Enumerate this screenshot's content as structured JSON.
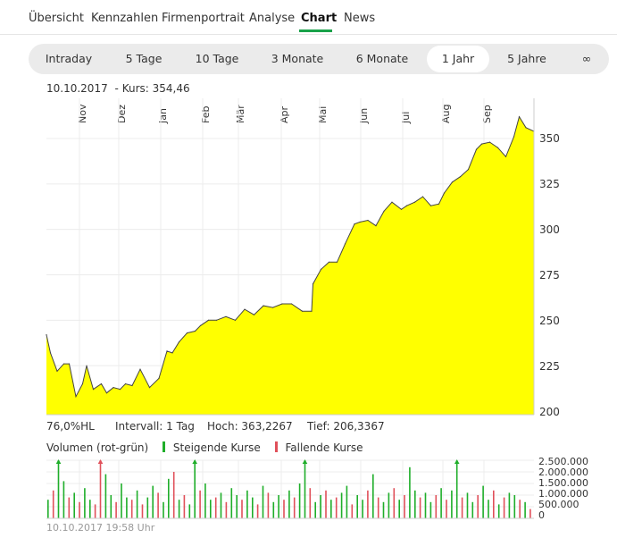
{
  "nav": {
    "tabs": [
      "Übersicht",
      "Kennzahlen",
      "Firmenportrait",
      "Analyse",
      "Chart",
      "News"
    ],
    "active": "Chart",
    "accent": "#19a24a"
  },
  "ranges": {
    "items": [
      "Intraday",
      "5 Tage",
      "10 Tage",
      "3 Monate",
      "6 Monate",
      "1 Jahr",
      "5 Jahre",
      "∞"
    ],
    "active": "1 Jahr"
  },
  "header": {
    "date": "10.10.2017",
    "kurs": "- Kurs: 354,46"
  },
  "footer_stats": {
    "hl": "76,0%HL",
    "interval": "Intervall: 1 Tag",
    "high": "Hoch: 363,2267",
    "low": "Tief: 206,3367"
  },
  "volume_legend": {
    "title": "Volumen (rot-grün)",
    "rising": "Steigende Kurse",
    "falling": "Fallende Kurse",
    "rising_color": "#1fae2a",
    "falling_color": "#e0505a"
  },
  "timestamp": "10.10.2017 19:58 Uhr",
  "chart_data": [
    {
      "type": "area",
      "fill_color": "#ffff00",
      "x_ticks": [
        "Nov",
        "Dez",
        "Jan",
        "Feb",
        "Mär",
        "Apr",
        "Mai",
        "Jun",
        "Jul",
        "Aug",
        "Sep"
      ],
      "y_ticks": [
        "350",
        "325",
        "300",
        "275",
        "250",
        "225",
        "200"
      ],
      "ylim": [
        200,
        363
      ],
      "grid": true,
      "x": [
        "2016-10-11",
        "2016-10-14",
        "2016-10-19",
        "2016-10-24",
        "2016-10-28",
        "2016-11-02",
        "2016-11-07",
        "2016-11-10",
        "2016-11-15",
        "2016-11-21",
        "2016-11-25",
        "2016-11-30",
        "2016-12-05",
        "2016-12-09",
        "2016-12-14",
        "2016-12-20",
        "2016-12-27",
        "2017-01-03",
        "2017-01-09",
        "2017-01-13",
        "2017-01-18",
        "2017-01-24",
        "2017-01-30",
        "2017-02-03",
        "2017-02-09",
        "2017-02-15",
        "2017-02-22",
        "2017-03-01",
        "2017-03-08",
        "2017-03-15",
        "2017-03-22",
        "2017-03-29",
        "2017-04-05",
        "2017-04-12",
        "2017-04-20",
        "2017-04-27",
        "2017-04-28",
        "2017-05-04",
        "2017-05-10",
        "2017-05-16",
        "2017-05-22",
        "2017-05-29",
        "2017-06-02",
        "2017-06-08",
        "2017-06-14",
        "2017-06-20",
        "2017-06-26",
        "2017-07-03",
        "2017-07-07",
        "2017-07-13",
        "2017-07-19",
        "2017-07-25",
        "2017-07-31",
        "2017-08-04",
        "2017-08-10",
        "2017-08-16",
        "2017-08-22",
        "2017-08-28",
        "2017-09-01",
        "2017-09-07",
        "2017-09-13",
        "2017-09-19",
        "2017-09-25",
        "2017-09-29",
        "2017-10-04",
        "2017-10-10"
      ],
      "values": [
        242,
        232,
        222,
        226,
        226,
        208,
        215,
        225,
        212,
        215,
        210,
        213,
        212,
        215,
        214,
        223,
        213,
        218,
        233,
        232,
        238,
        243,
        244,
        247,
        250,
        250,
        252,
        250,
        256,
        253,
        258,
        257,
        259,
        259,
        255,
        255,
        270,
        278,
        282,
        282,
        292,
        303,
        304,
        305,
        302,
        310,
        315,
        311,
        313,
        315,
        318,
        313,
        314,
        320,
        326,
        329,
        333,
        344,
        347,
        348,
        345,
        340,
        351,
        362,
        356,
        354
      ]
    },
    {
      "type": "bar",
      "title": "Volumen (rot-grün)",
      "y_ticks": [
        "2.500.000",
        "2.000.000",
        "1.500.000",
        "1.000.000",
        "500.000",
        "0"
      ],
      "ylim": [
        0,
        2500000
      ],
      "series": [
        {
          "name": "Steigende Kurse",
          "color": "#1fae2a"
        },
        {
          "name": "Fallende Kurse",
          "color": "#e0505a"
        }
      ],
      "values": [
        800000,
        1200000,
        2600000,
        1600000,
        900000,
        1100000,
        700000,
        1300000,
        800000,
        600000,
        2600000,
        1900000,
        1000000,
        700000,
        1500000,
        900000,
        800000,
        1200000,
        600000,
        900000,
        1400000,
        1100000,
        700000,
        1700000,
        2000000,
        800000,
        1000000,
        600000,
        2600000,
        1200000,
        1500000,
        800000,
        900000,
        1100000,
        700000,
        1300000,
        1000000,
        800000,
        1200000,
        900000,
        600000,
        1400000,
        1100000,
        700000,
        1000000,
        800000,
        1200000,
        900000,
        1500000,
        2600000,
        1300000,
        700000,
        1000000,
        1200000,
        800000,
        900000,
        1100000,
        1400000,
        600000,
        1000000,
        800000,
        1200000,
        1900000,
        900000,
        700000,
        1100000,
        1300000,
        800000,
        1000000,
        2200000,
        1200000,
        900000,
        1100000,
        700000,
        1000000,
        1300000,
        800000,
        1200000,
        2600000,
        900000,
        1100000,
        700000,
        1000000,
        1400000,
        800000,
        1200000,
        600000,
        900000,
        1100000,
        1000000,
        800000,
        700000,
        400000
      ],
      "directions": [
        "u",
        "d",
        "u",
        "u",
        "d",
        "u",
        "d",
        "u",
        "u",
        "d",
        "d",
        "u",
        "u",
        "d",
        "u",
        "u",
        "d",
        "u",
        "d",
        "u",
        "u",
        "d",
        "u",
        "u",
        "d",
        "u",
        "d",
        "u",
        "u",
        "d",
        "u",
        "u",
        "d",
        "u",
        "d",
        "u",
        "u",
        "d",
        "u",
        "u",
        "d",
        "u",
        "d",
        "u",
        "u",
        "d",
        "u",
        "d",
        "u",
        "u",
        "d",
        "u",
        "u",
        "d",
        "u",
        "d",
        "u",
        "u",
        "d",
        "u",
        "u",
        "d",
        "u",
        "d",
        "u",
        "u",
        "d",
        "u",
        "d",
        "u",
        "u",
        "d",
        "u",
        "u",
        "d",
        "u",
        "d",
        "u",
        "u",
        "d",
        "u",
        "u",
        "d",
        "u",
        "u",
        "d",
        "u",
        "d",
        "u",
        "u",
        "d",
        "u",
        "d"
      ]
    }
  ]
}
